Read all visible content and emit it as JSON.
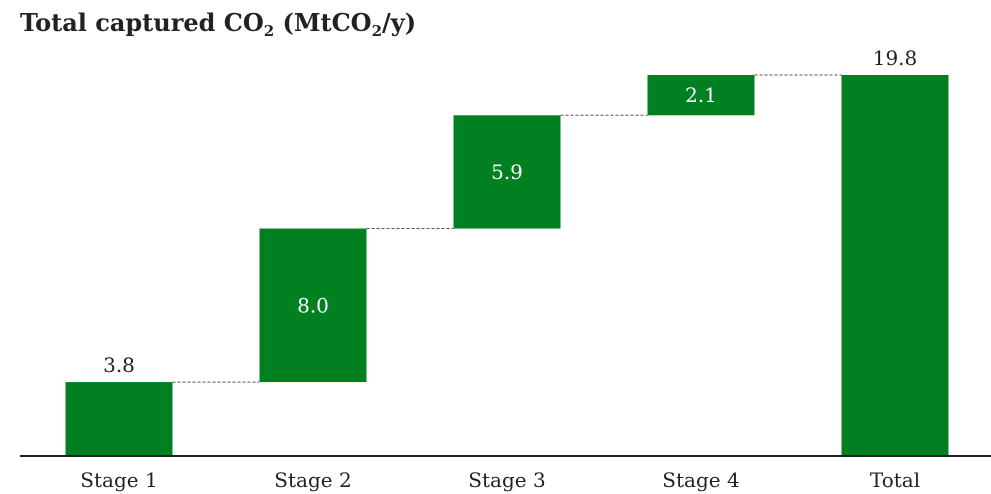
{
  "chart_data": {
    "type": "bar",
    "subtype": "waterfall",
    "title": {
      "prefix": "Total captured CO",
      "sub1": "2",
      "middle": " (MtCO",
      "sub2": "2",
      "suffix": "/y)"
    },
    "categories": [
      "Stage 1",
      "Stage 2",
      "Stage 3",
      "Stage 4",
      "Total"
    ],
    "values": [
      3.8,
      8.0,
      5.9,
      2.1,
      19.8
    ],
    "labels": [
      "3.8",
      "8.0",
      "5.9",
      "2.1",
      "19.8"
    ],
    "is_total": [
      false,
      false,
      false,
      false,
      true
    ],
    "bar_color": "#008020",
    "connector_color": "#555555",
    "axis_color": "#222222",
    "ylim": [
      0,
      19.8
    ],
    "grid": false,
    "legend": "none"
  }
}
